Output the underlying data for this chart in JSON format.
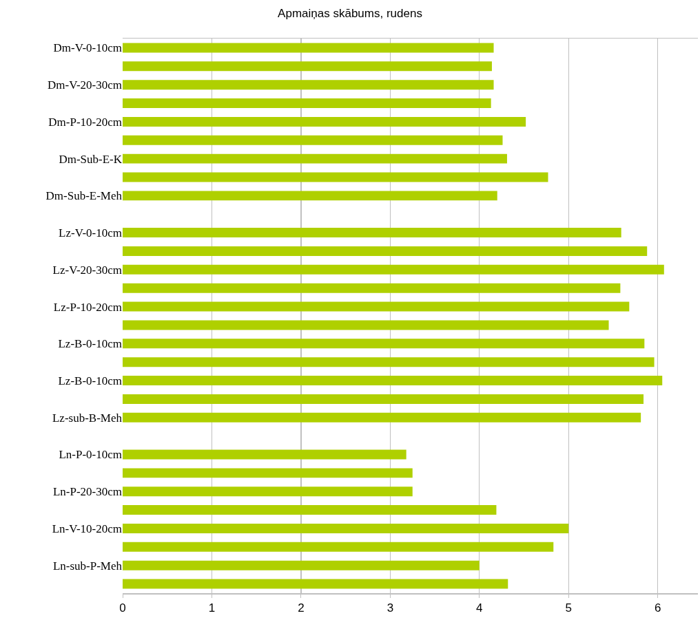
{
  "chart_data": {
    "type": "bar",
    "orientation": "horizontal",
    "title": "Apmaiņas skābums, rudens",
    "categories": [
      "Dm-V-0-10cm",
      null,
      "Dm-V-20-30cm",
      null,
      "Dm-P-10-20cm",
      null,
      "Dm-Sub-E-K",
      null,
      "Dm-Sub-E-Meh",
      null,
      "Lz-V-0-10cm",
      null,
      "Lz-V-20-30cm",
      null,
      "Lz-P-10-20cm",
      null,
      "Lz-B-0-10cm",
      null,
      "Lz-B-0-10cm",
      null,
      "Lz-sub-B-Meh",
      null,
      "Ln-P-0-10cm",
      null,
      "Ln-P-20-30cm",
      null,
      "Ln-V-10-20cm",
      null,
      "Ln-sub-P-Meh",
      null
    ],
    "values": [
      4.16,
      4.14,
      4.16,
      4.13,
      4.52,
      4.26,
      4.31,
      4.77,
      4.2,
      null,
      5.59,
      5.88,
      6.07,
      5.58,
      5.68,
      5.45,
      5.85,
      5.96,
      6.05,
      5.84,
      5.81,
      null,
      3.18,
      3.25,
      3.25,
      4.19,
      5.0,
      4.83,
      4.0,
      4.32
    ],
    "color": "#afd000",
    "xlim": [
      0,
      6.45
    ],
    "xticks": [
      0,
      1,
      2,
      3,
      4,
      5,
      6
    ],
    "grid": "x",
    "legend": false
  }
}
